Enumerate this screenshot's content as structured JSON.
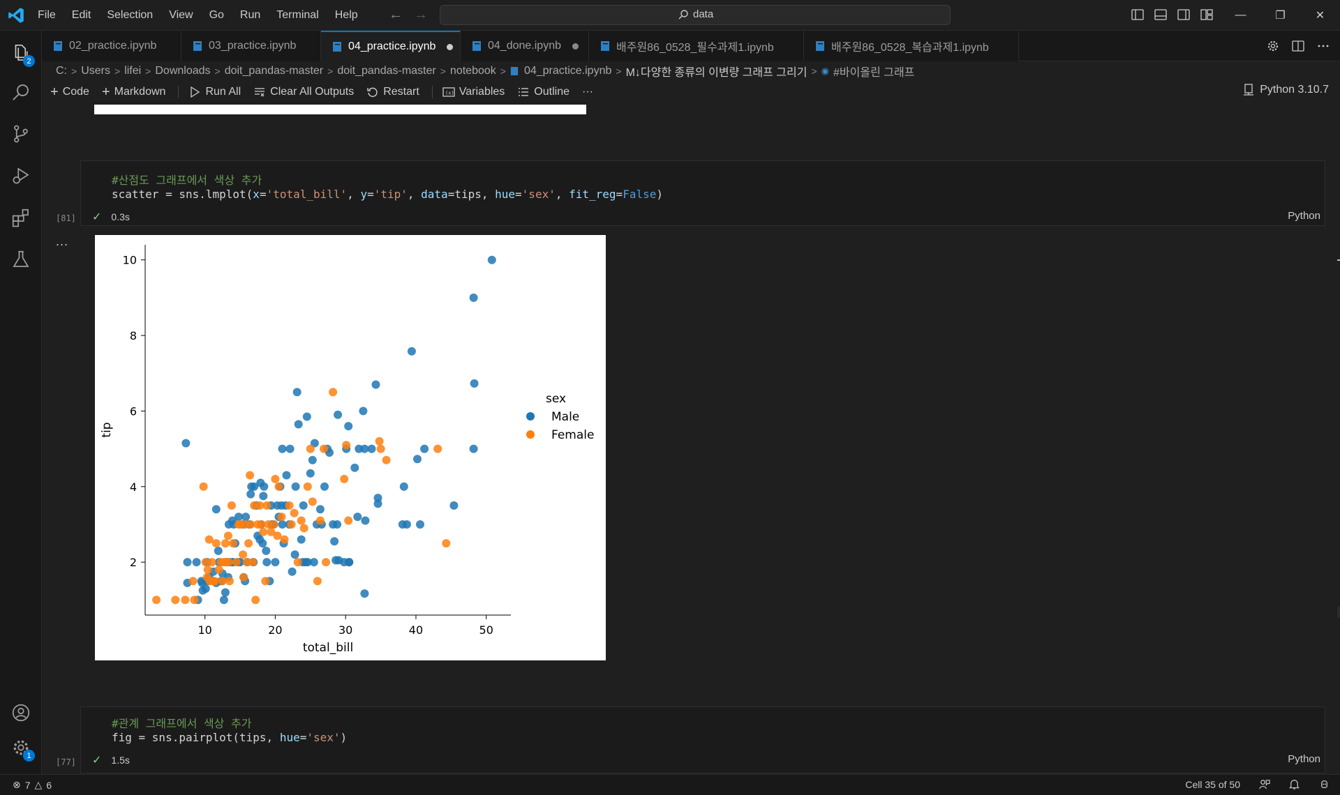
{
  "menu": [
    "File",
    "Edit",
    "Selection",
    "View",
    "Go",
    "Run",
    "Terminal",
    "Help"
  ],
  "search": {
    "text": "data"
  },
  "tabs": [
    {
      "label": "02_practice.ipynb",
      "modified": false
    },
    {
      "label": "03_practice.ipynb",
      "modified": false
    },
    {
      "label": "04_practice.ipynb",
      "modified": true,
      "active": true
    },
    {
      "label": "04_done.ipynb",
      "modified": true
    },
    {
      "label": "배주원86_0528_필수과제1.ipynb",
      "modified": false
    },
    {
      "label": "배주원86_0528_복습과제1.ipynb",
      "modified": false
    }
  ],
  "breadcrumb": [
    "C:",
    "Users",
    "lifei",
    "Downloads",
    "doit_pandas-master",
    "doit_pandas-master",
    "notebook",
    "04_practice.ipynb",
    "M↓다양한 종류의 이변량 그래프 그리기",
    "#바이올린 그래프"
  ],
  "toolbar": {
    "code": "Code",
    "markdown": "Markdown",
    "run_all": "Run All",
    "clear_outputs": "Clear All Outputs",
    "restart": "Restart",
    "variables": "Variables",
    "outline": "Outline",
    "more": "···",
    "kernel": "Python 3.10.7"
  },
  "cell81": {
    "comment": "#산점도 그래프에서 색상 추가",
    "exec_count": "[81]",
    "duration": "0.3s",
    "lang": "Python"
  },
  "cell77": {
    "comment": "#관계 그래프에서 색상 추가",
    "exec_count": "[77]",
    "duration": "1.5s",
    "lang": "Python"
  },
  "output_more": "...",
  "activity_badges": {
    "explorer": "2",
    "settings": "1"
  },
  "status": {
    "errors": "7",
    "warnings": "6",
    "cell_position": "Cell 35 of 50"
  },
  "colors": {
    "male": "#1f77b4",
    "female": "#ff7f0e",
    "accent": "#0078d4"
  },
  "chart_data": {
    "type": "scatter",
    "xlabel": "total_bill",
    "ylabel": "tip",
    "xlim": [
      1.5,
      53.5
    ],
    "ylim": [
      0.6,
      10.4
    ],
    "xticks": [
      10,
      20,
      30,
      40,
      50
    ],
    "yticks": [
      2,
      4,
      6,
      8,
      10
    ],
    "legend_title": "sex",
    "legend_position": "right",
    "series": [
      {
        "name": "Male",
        "color": "#1f77b4",
        "points": [
          [
            7.3,
            5.15
          ],
          [
            7.5,
            2.0
          ],
          [
            7.5,
            1.45
          ],
          [
            8.8,
            2.0
          ],
          [
            9.0,
            1.0
          ],
          [
            9.5,
            1.5
          ],
          [
            9.6,
            1.45
          ],
          [
            9.7,
            1.25
          ],
          [
            10.1,
            1.3
          ],
          [
            10.3,
            1.5
          ],
          [
            10.3,
            2.0
          ],
          [
            10.6,
            1.6
          ],
          [
            11.2,
            1.75
          ],
          [
            11.6,
            1.45
          ],
          [
            11.6,
            3.4
          ],
          [
            11.9,
            2.3
          ],
          [
            12.0,
            2.0
          ],
          [
            12.3,
            1.5
          ],
          [
            12.5,
            1.7
          ],
          [
            12.7,
            1.0
          ],
          [
            12.9,
            1.2
          ],
          [
            13.0,
            2.0
          ],
          [
            13.3,
            1.6
          ],
          [
            13.4,
            3.0
          ],
          [
            13.4,
            2.0
          ],
          [
            13.8,
            2.0
          ],
          [
            13.9,
            3.1
          ],
          [
            14.0,
            2.0
          ],
          [
            14.1,
            3.0
          ],
          [
            14.3,
            2.5
          ],
          [
            14.7,
            2.0
          ],
          [
            14.8,
            3.2
          ],
          [
            15.0,
            2.0
          ],
          [
            15.4,
            3.0
          ],
          [
            15.5,
            1.6
          ],
          [
            15.7,
            1.5
          ],
          [
            15.8,
            3.2
          ],
          [
            16.0,
            2.0
          ],
          [
            16.3,
            3.0
          ],
          [
            16.5,
            3.8
          ],
          [
            16.6,
            4.0
          ],
          [
            16.9,
            2.0
          ],
          [
            17.0,
            4.0
          ],
          [
            17.3,
            3.5
          ],
          [
            17.5,
            2.7
          ],
          [
            17.8,
            2.6
          ],
          [
            17.9,
            4.1
          ],
          [
            18.0,
            3.0
          ],
          [
            18.2,
            2.5
          ],
          [
            18.3,
            3.75
          ],
          [
            18.4,
            4.0
          ],
          [
            18.7,
            2.3
          ],
          [
            18.8,
            2.0
          ],
          [
            19.2,
            1.5
          ],
          [
            19.4,
            3.5
          ],
          [
            19.5,
            3.0
          ],
          [
            19.8,
            3.0
          ],
          [
            20.0,
            2.0
          ],
          [
            20.3,
            3.5
          ],
          [
            20.5,
            3.2
          ],
          [
            20.7,
            4.0
          ],
          [
            20.9,
            3.5
          ],
          [
            21.0,
            3.0
          ],
          [
            21.0,
            5.0
          ],
          [
            21.2,
            2.5
          ],
          [
            21.5,
            3.5
          ],
          [
            21.6,
            4.3
          ],
          [
            22.0,
            3.0
          ],
          [
            22.1,
            5.0
          ],
          [
            22.4,
            1.75
          ],
          [
            22.8,
            2.2
          ],
          [
            22.9,
            4.0
          ],
          [
            23.1,
            6.5
          ],
          [
            23.3,
            5.65
          ],
          [
            23.7,
            2.6
          ],
          [
            23.9,
            2.0
          ],
          [
            24.0,
            3.5
          ],
          [
            24.3,
            2.0
          ],
          [
            24.5,
            5.85
          ],
          [
            24.6,
            2.0
          ],
          [
            25.0,
            4.35
          ],
          [
            25.3,
            4.7
          ],
          [
            25.6,
            5.15
          ],
          [
            25.9,
            3.0
          ],
          [
            26.4,
            3.4
          ],
          [
            26.6,
            3.0
          ],
          [
            27.0,
            4.0
          ],
          [
            27.4,
            5.0
          ],
          [
            27.7,
            4.9
          ],
          [
            28.2,
            3.0
          ],
          [
            28.4,
            2.55
          ],
          [
            28.6,
            2.05
          ],
          [
            28.8,
            3.0
          ],
          [
            28.9,
            5.9
          ],
          [
            29.0,
            2.05
          ],
          [
            29.8,
            2.0
          ],
          [
            30.1,
            5.0
          ],
          [
            30.4,
            5.6
          ],
          [
            30.5,
            2.0
          ],
          [
            30.5,
            2.0
          ],
          [
            31.3,
            4.5
          ],
          [
            31.7,
            3.2
          ],
          [
            31.9,
            5.0
          ],
          [
            32.5,
            6.0
          ],
          [
            32.7,
            5.0
          ],
          [
            32.8,
            3.1
          ],
          [
            33.7,
            5.0
          ],
          [
            34.3,
            6.7
          ],
          [
            34.6,
            3.7
          ],
          [
            34.6,
            3.55
          ],
          [
            38.1,
            3.0
          ],
          [
            38.3,
            4.0
          ],
          [
            38.7,
            3.0
          ],
          [
            39.4,
            7.58
          ],
          [
            40.2,
            4.73
          ],
          [
            40.6,
            3.0
          ],
          [
            41.2,
            5.0
          ],
          [
            45.4,
            3.5
          ],
          [
            48.2,
            9.0
          ],
          [
            48.2,
            5.0
          ],
          [
            48.3,
            6.73
          ],
          [
            50.8,
            10.0
          ],
          [
            32.7,
            1.17
          ],
          [
            25.5,
            2.0
          ]
        ]
      },
      {
        "name": "Female",
        "color": "#ff7f0e",
        "points": [
          [
            3.1,
            1.0
          ],
          [
            5.8,
            1.0
          ],
          [
            7.2,
            1.0
          ],
          [
            8.3,
            1.5
          ],
          [
            8.5,
            1.0
          ],
          [
            9.8,
            4.0
          ],
          [
            10.1,
            2.0
          ],
          [
            10.3,
            1.6
          ],
          [
            10.4,
            1.8
          ],
          [
            10.6,
            2.6
          ],
          [
            10.7,
            1.5
          ],
          [
            11.0,
            2.0
          ],
          [
            11.2,
            1.5
          ],
          [
            11.4,
            1.5
          ],
          [
            11.6,
            2.5
          ],
          [
            12.0,
            1.8
          ],
          [
            12.3,
            2.0
          ],
          [
            12.5,
            1.5
          ],
          [
            12.7,
            2.0
          ],
          [
            12.9,
            2.5
          ],
          [
            13.0,
            2.0
          ],
          [
            13.3,
            2.7
          ],
          [
            13.4,
            2.0
          ],
          [
            13.5,
            1.5
          ],
          [
            13.8,
            3.5
          ],
          [
            14.0,
            2.5
          ],
          [
            14.5,
            2.0
          ],
          [
            14.8,
            3.0
          ],
          [
            15.0,
            3.0
          ],
          [
            15.4,
            2.2
          ],
          [
            15.5,
            1.6
          ],
          [
            15.7,
            3.0
          ],
          [
            16.0,
            2.0
          ],
          [
            16.2,
            2.5
          ],
          [
            16.4,
            4.3
          ],
          [
            16.5,
            3.0
          ],
          [
            16.8,
            2.0
          ],
          [
            17.0,
            3.5
          ],
          [
            17.2,
            1.0
          ],
          [
            17.5,
            3.0
          ],
          [
            17.8,
            3.5
          ],
          [
            18.0,
            3.0
          ],
          [
            18.3,
            2.8
          ],
          [
            18.6,
            1.5
          ],
          [
            18.8,
            3.5
          ],
          [
            19.0,
            3.0
          ],
          [
            19.4,
            2.8
          ],
          [
            19.8,
            3.0
          ],
          [
            20.0,
            4.2
          ],
          [
            20.3,
            2.7
          ],
          [
            20.5,
            4.0
          ],
          [
            20.9,
            3.2
          ],
          [
            21.3,
            2.6
          ],
          [
            22.0,
            3.5
          ],
          [
            22.3,
            3.0
          ],
          [
            22.7,
            3.3
          ],
          [
            23.2,
            2.0
          ],
          [
            23.7,
            3.1
          ],
          [
            24.1,
            2.9
          ],
          [
            24.6,
            4.0
          ],
          [
            25.0,
            5.0
          ],
          [
            25.3,
            3.6
          ],
          [
            26.0,
            1.5
          ],
          [
            26.4,
            3.1
          ],
          [
            26.9,
            5.0
          ],
          [
            27.2,
            2.0
          ],
          [
            28.2,
            6.5
          ],
          [
            29.8,
            4.2
          ],
          [
            30.1,
            5.1
          ],
          [
            30.4,
            3.1
          ],
          [
            34.8,
            5.2
          ],
          [
            35.0,
            5.0
          ],
          [
            35.8,
            4.7
          ],
          [
            43.1,
            5.0
          ],
          [
            44.3,
            2.5
          ]
        ]
      }
    ]
  }
}
